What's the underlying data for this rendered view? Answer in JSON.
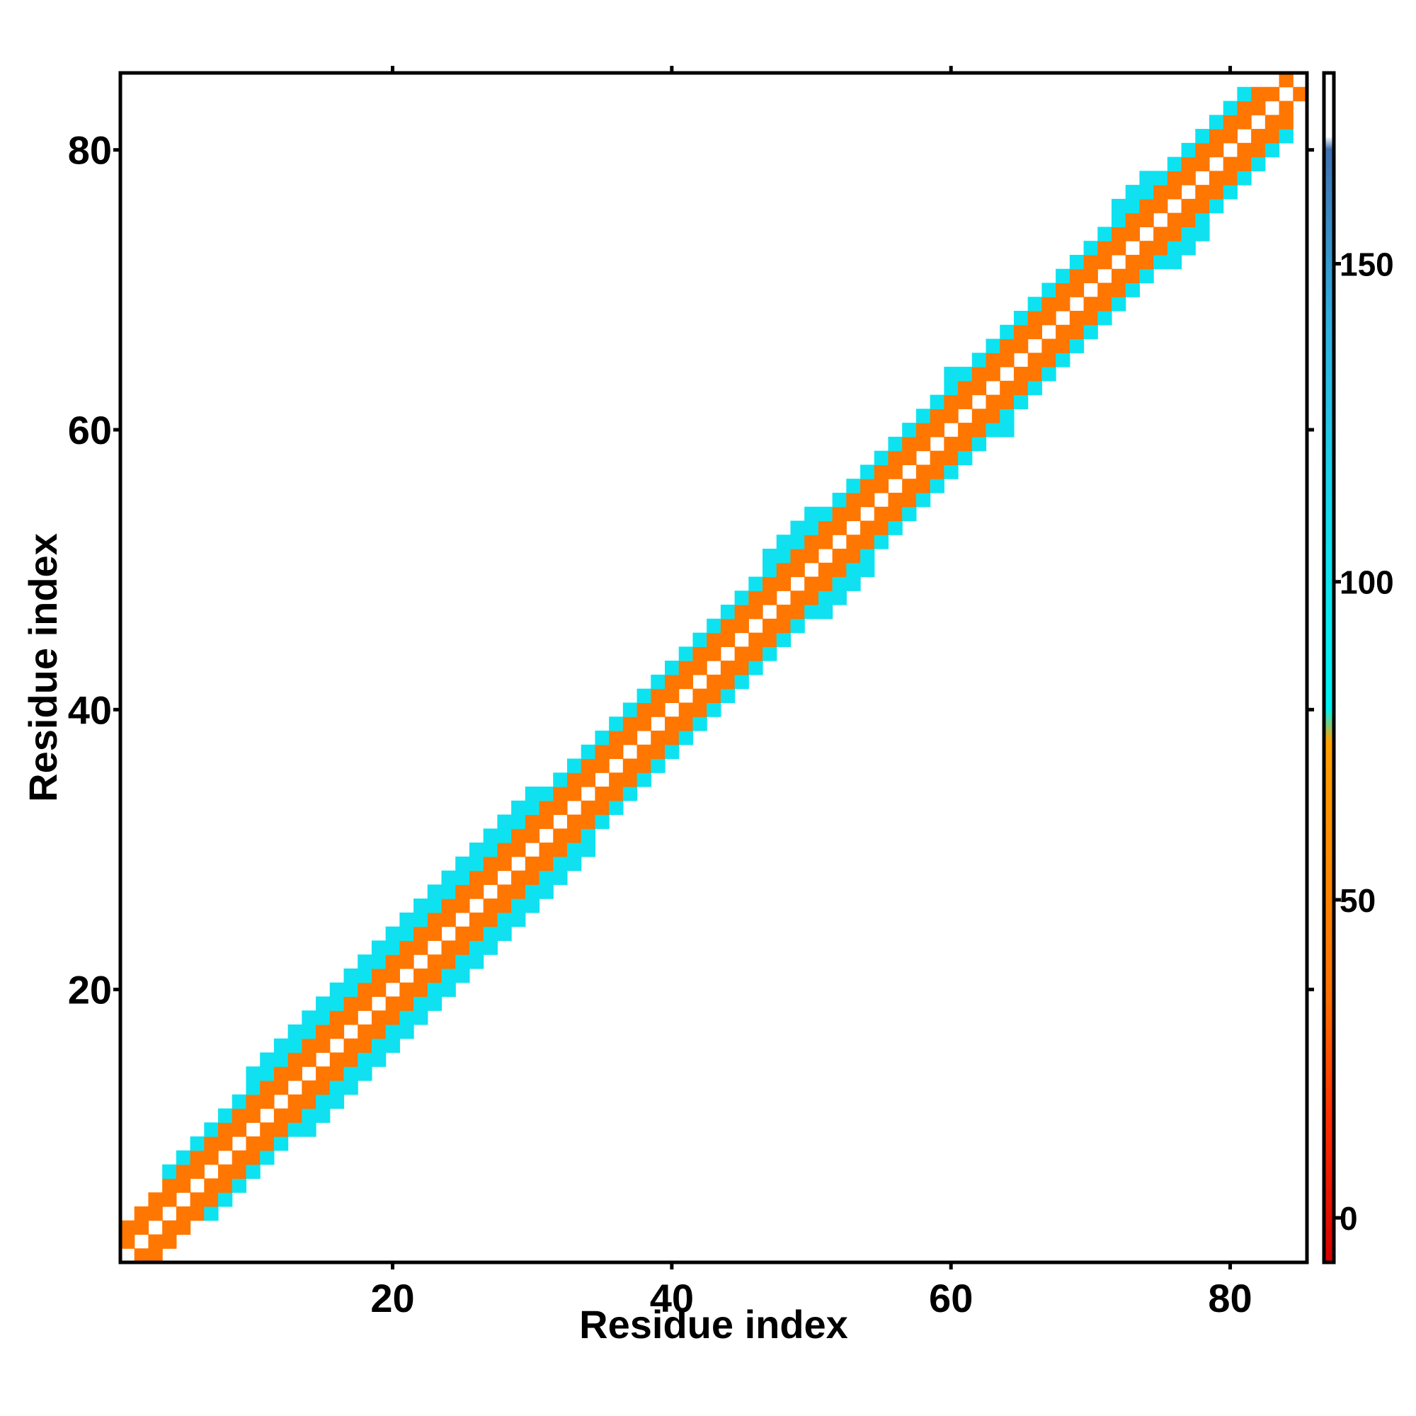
{
  "chart_data": {
    "type": "heatmap",
    "title": "",
    "xlabel": "Residue index",
    "ylabel": "Residue index",
    "xlim": [
      0.5,
      85.5
    ],
    "ylim": [
      0.5,
      85.5
    ],
    "x_ticks": [
      20,
      40,
      60,
      80
    ],
    "y_ticks": [
      20,
      40,
      60,
      80
    ],
    "grid": false,
    "colorbar": {
      "range": [
        -7,
        180
      ],
      "ticks": [
        0,
        50,
        100,
        150
      ],
      "stops": [
        {
          "value": -7,
          "color": "#d40000"
        },
        {
          "value": 15,
          "color": "#ff2a00"
        },
        {
          "value": 35,
          "color": "#ff7000"
        },
        {
          "value": 75,
          "color": "#ffa000"
        },
        {
          "value": 80,
          "color": "#00f0f0"
        },
        {
          "value": 105,
          "color": "#10e0f0"
        },
        {
          "value": 140,
          "color": "#30b0e0"
        },
        {
          "value": 168,
          "color": "#4070b0"
        },
        {
          "value": 170,
          "color": "#ffffff"
        },
        {
          "value": 180,
          "color": "#ffffff"
        }
      ]
    },
    "band_halfwidth_bounds": [
      {
        "residue": 1,
        "halfwidth": 2
      },
      {
        "residue": 4,
        "halfwidth": 3
      },
      {
        "residue": 10,
        "halfwidth": 4
      },
      {
        "residue": 17,
        "halfwidth": 4
      },
      {
        "residue": 22,
        "halfwidth": 5
      },
      {
        "residue": 27,
        "halfwidth": 4
      },
      {
        "residue": 35,
        "halfwidth": 3
      },
      {
        "residue": 44,
        "halfwidth": 3
      },
      {
        "residue": 47,
        "halfwidth": 4
      },
      {
        "residue": 55,
        "halfwidth": 3
      },
      {
        "residue": 60,
        "halfwidth": 4
      },
      {
        "residue": 65,
        "halfwidth": 3
      },
      {
        "residue": 72,
        "halfwidth": 4
      },
      {
        "residue": 79,
        "halfwidth": 3
      },
      {
        "residue": 85,
        "halfwidth": 1
      }
    ],
    "offdiag_value_by_separation": [
      {
        "separation": 1,
        "value_odd": 40,
        "value_even": 100
      },
      {
        "separation": 2,
        "value_odd": 15,
        "value_even": 40
      },
      {
        "separation": 3,
        "value_odd": 100,
        "value_even": 40
      },
      {
        "separation": 4,
        "value_odd": 40,
        "value_even": 105
      },
      {
        "separation": 5,
        "value_odd": 100,
        "value_even": 100
      }
    ],
    "diagonal_value": 180
  }
}
